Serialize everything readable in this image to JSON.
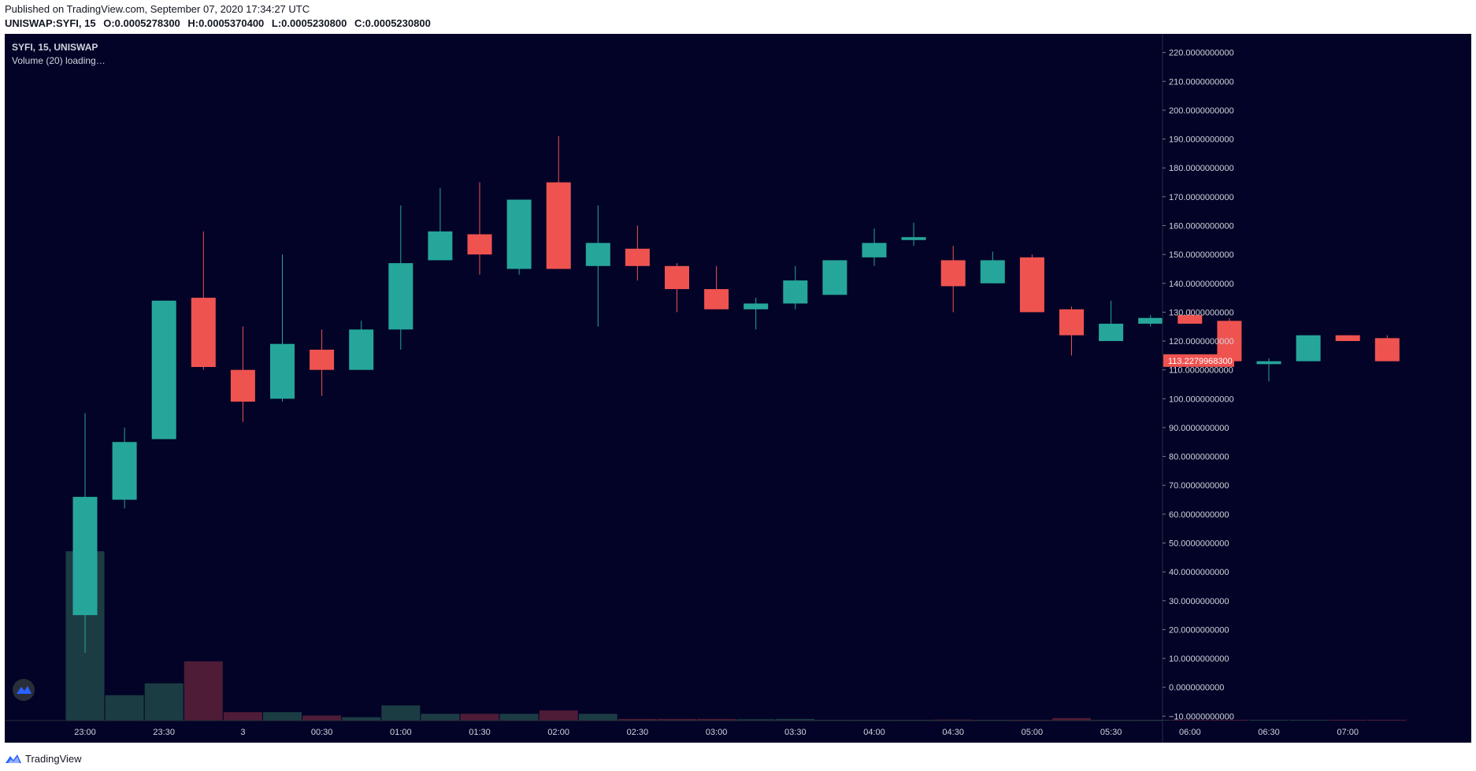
{
  "header": {
    "published": "Published on TradingView.com, September 07, 2020 17:34:27 UTC",
    "symbol": "UNISWAP:SYFI, 15",
    "o": "O:0.0005278300",
    "h": "H:0.0005370400",
    "l": "L:0.0005230800",
    "c": "C:0.0005230800"
  },
  "legend": {
    "title": "SYFI, 15, UNISWAP",
    "volume": "Volume (20) loading…"
  },
  "footer": {
    "brand": "TradingView"
  },
  "colors": {
    "background": "#020327",
    "up": "#26a69a",
    "down": "#ef5350",
    "up_volume": "#1c3c44",
    "down_volume": "#4e1c37",
    "axis_text": "#d1d4dc",
    "price_label_bg": "#ef5350"
  },
  "chart_data": {
    "type": "candlestick",
    "y_axis_ticks": [
      "220.0000000000",
      "210.0000000000",
      "200.0000000000",
      "190.0000000000",
      "180.0000000000",
      "170.0000000000",
      "160.0000000000",
      "150.0000000000",
      "140.0000000000",
      "130.0000000000",
      "120.0000000000",
      "110.0000000000",
      "100.0000000000",
      "90.0000000000",
      "80.0000000000",
      "70.0000000000",
      "60.0000000000",
      "50.0000000000",
      "40.0000000000",
      "30.0000000000",
      "20.0000000000",
      "10.0000000000",
      "0.0000000000",
      "−10.0000000000"
    ],
    "ylim": [
      -11,
      224
    ],
    "x_axis_ticks": [
      "23:00",
      "23:30",
      "3",
      "00:30",
      "01:00",
      "01:30",
      "02:00",
      "02:30",
      "03:00",
      "03:30",
      "04:00",
      "04:30",
      "05:00",
      "05:30",
      "06:00",
      "06:30",
      "07:00"
    ],
    "last_price": "113.2279968300",
    "candles": [
      {
        "o": 25,
        "h": 95,
        "l": 12,
        "c": 66,
        "v": 100
      },
      {
        "o": 65,
        "h": 90,
        "l": 62,
        "c": 85,
        "v": 15
      },
      {
        "o": 86,
        "h": 134,
        "l": 86,
        "c": 134,
        "v": 22
      },
      {
        "o": 135,
        "h": 158,
        "l": 110,
        "c": 111,
        "v": 35
      },
      {
        "o": 110,
        "h": 125,
        "l": 92,
        "c": 99,
        "v": 5
      },
      {
        "o": 100,
        "h": 150,
        "l": 99,
        "c": 119,
        "v": 5
      },
      {
        "o": 117,
        "h": 124,
        "l": 101,
        "c": 110,
        "v": 3
      },
      {
        "o": 110,
        "h": 127,
        "l": 110,
        "c": 124,
        "v": 2
      },
      {
        "o": 124,
        "h": 167,
        "l": 117,
        "c": 147,
        "v": 9
      },
      {
        "o": 148,
        "h": 173,
        "l": 148,
        "c": 158,
        "v": 4
      },
      {
        "o": 157,
        "h": 175,
        "l": 143,
        "c": 150,
        "v": 4
      },
      {
        "o": 145,
        "h": 169,
        "l": 143,
        "c": 169,
        "v": 4
      },
      {
        "o": 175,
        "h": 191,
        "l": 145,
        "c": 145,
        "v": 6
      },
      {
        "o": 146,
        "h": 167,
        "l": 125,
        "c": 154,
        "v": 4
      },
      {
        "o": 152,
        "h": 160,
        "l": 141,
        "c": 146,
        "v": 1
      },
      {
        "o": 146,
        "h": 147,
        "l": 130,
        "c": 138,
        "v": 1
      },
      {
        "o": 138,
        "h": 146,
        "l": 131,
        "c": 131,
        "v": 1
      },
      {
        "o": 131,
        "h": 135,
        "l": 124,
        "c": 133,
        "v": 0.8
      },
      {
        "o": 133,
        "h": 146,
        "l": 131,
        "c": 141,
        "v": 1
      },
      {
        "o": 136,
        "h": 148,
        "l": 136,
        "c": 148,
        "v": 0.4
      },
      {
        "o": 149,
        "h": 159,
        "l": 146,
        "c": 154,
        "v": 0.4
      },
      {
        "o": 155,
        "h": 161,
        "l": 153,
        "c": 156,
        "v": 0.3
      },
      {
        "o": 148,
        "h": 153,
        "l": 130,
        "c": 139,
        "v": 0.6
      },
      {
        "o": 140,
        "h": 151,
        "l": 140,
        "c": 148,
        "v": 0.4
      },
      {
        "o": 149,
        "h": 150,
        "l": 130,
        "c": 130,
        "v": 0.4
      },
      {
        "o": 131,
        "h": 132,
        "l": 115,
        "c": 122,
        "v": 1.5
      },
      {
        "o": 120,
        "h": 134,
        "l": 120,
        "c": 126,
        "v": 0.3
      },
      {
        "o": 126,
        "h": 129,
        "l": 125,
        "c": 128,
        "v": 0.2
      },
      {
        "o": 129,
        "h": 131,
        "l": 126,
        "c": 126,
        "v": 0.2
      },
      {
        "o": 127,
        "h": 128,
        "l": 113,
        "c": 113,
        "v": 0.3
      },
      {
        "o": 112,
        "h": 114,
        "l": 106,
        "c": 113,
        "v": 0.3
      },
      {
        "o": 113,
        "h": 122,
        "l": 113,
        "c": 122,
        "v": 0.3
      },
      {
        "o": 122,
        "h": 122,
        "l": 120,
        "c": 120,
        "v": 0.2
      },
      {
        "o": 121,
        "h": 122,
        "l": 113,
        "c": 113,
        "v": 0.2
      }
    ]
  }
}
